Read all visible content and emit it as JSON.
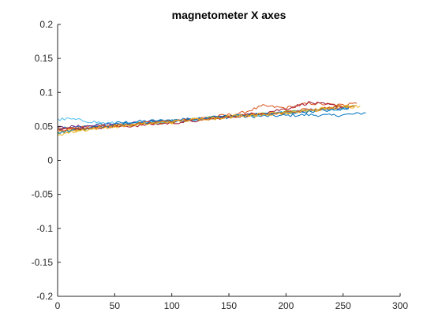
{
  "chart_data": {
    "type": "line",
    "title": "magnetometer X axes",
    "xlabel": "",
    "ylabel": "",
    "xlim": [
      0,
      300
    ],
    "ylim": [
      -0.2,
      0.2
    ],
    "xticks": [
      0,
      50,
      100,
      150,
      200,
      250,
      300
    ],
    "yticks": [
      -0.2,
      -0.15,
      -0.1,
      -0.05,
      0,
      0.05,
      0.1,
      0.15,
      0.2
    ],
    "xtick_labels": [
      "0",
      "50",
      "100",
      "150",
      "200",
      "250",
      "300"
    ],
    "ytick_labels": [
      "-0.2",
      "-0.15",
      "-0.1",
      "-0.05",
      "0",
      "0.05",
      "0.1",
      "0.15",
      "0.2"
    ],
    "grid": false,
    "legend": "none",
    "series": [
      {
        "color": "#0072BD",
        "x": [
          0,
          20,
          40,
          60,
          80,
          100,
          120,
          140,
          160,
          180,
          200,
          220,
          240,
          260,
          270
        ],
        "y": [
          0.046,
          0.049,
          0.053,
          0.056,
          0.058,
          0.059,
          0.061,
          0.063,
          0.064,
          0.065,
          0.066,
          0.067,
          0.066,
          0.068,
          0.07
        ]
      },
      {
        "color": "#D95319",
        "x": [
          0,
          20,
          40,
          60,
          80,
          100,
          120,
          140,
          160,
          180,
          200,
          220,
          240,
          260
        ],
        "y": [
          0.047,
          0.048,
          0.051,
          0.052,
          0.054,
          0.057,
          0.061,
          0.065,
          0.069,
          0.08,
          0.077,
          0.084,
          0.082,
          0.08
        ]
      },
      {
        "color": "#EDB120",
        "x": [
          0,
          20,
          40,
          60,
          80,
          100,
          120,
          140,
          160,
          180,
          200,
          220,
          240,
          265
        ],
        "y": [
          0.043,
          0.046,
          0.049,
          0.052,
          0.054,
          0.056,
          0.059,
          0.062,
          0.065,
          0.067,
          0.07,
          0.073,
          0.076,
          0.08
        ]
      },
      {
        "color": "#7E2F8E",
        "x": [
          0,
          20,
          40,
          60,
          80,
          100,
          120,
          140,
          160,
          180,
          200,
          220,
          240,
          255
        ],
        "y": [
          0.048,
          0.05,
          0.052,
          0.054,
          0.056,
          0.058,
          0.06,
          0.063,
          0.066,
          0.068,
          0.071,
          0.074,
          0.076,
          0.078
        ]
      },
      {
        "color": "#77AC30",
        "x": [
          0,
          20,
          40,
          60,
          80,
          100,
          120,
          140,
          160,
          180,
          200,
          220,
          240,
          260
        ],
        "y": [
          0.04,
          0.045,
          0.049,
          0.052,
          0.055,
          0.057,
          0.06,
          0.063,
          0.066,
          0.068,
          0.071,
          0.074,
          0.077,
          0.081
        ]
      },
      {
        "color": "#4DBEEE",
        "x": [
          0,
          10,
          20,
          30,
          40,
          60,
          80,
          100,
          120,
          140,
          160,
          180,
          200,
          220,
          240,
          255
        ],
        "y": [
          0.06,
          0.061,
          0.059,
          0.057,
          0.055,
          0.054,
          0.055,
          0.057,
          0.06,
          0.063,
          0.066,
          0.068,
          0.071,
          0.073,
          0.075,
          0.077
        ]
      },
      {
        "color": "#A2142F",
        "x": [
          0,
          20,
          40,
          60,
          80,
          100,
          120,
          140,
          160,
          180,
          200,
          220,
          235,
          250
        ],
        "y": [
          0.047,
          0.047,
          0.049,
          0.05,
          0.053,
          0.055,
          0.058,
          0.062,
          0.066,
          0.07,
          0.076,
          0.085,
          0.082,
          0.079
        ]
      },
      {
        "color": "#0072BD",
        "x": [
          0,
          20,
          40,
          60,
          80,
          100,
          120,
          140,
          160,
          180,
          200,
          220,
          240,
          255
        ],
        "y": [
          0.041,
          0.046,
          0.05,
          0.054,
          0.057,
          0.059,
          0.061,
          0.064,
          0.066,
          0.068,
          0.07,
          0.072,
          0.074,
          0.076
        ]
      },
      {
        "color": "#D95319",
        "x": [
          0,
          20,
          40,
          60,
          80,
          100,
          120,
          140,
          160,
          180,
          200,
          220,
          240,
          262
        ],
        "y": [
          0.045,
          0.047,
          0.05,
          0.053,
          0.055,
          0.058,
          0.06,
          0.062,
          0.065,
          0.068,
          0.071,
          0.075,
          0.078,
          0.084
        ]
      },
      {
        "color": "#EDB120",
        "x": [
          0,
          20,
          40,
          60,
          80,
          100,
          120,
          140,
          160,
          180,
          200,
          220,
          240,
          258
        ],
        "y": [
          0.038,
          0.044,
          0.048,
          0.051,
          0.054,
          0.057,
          0.06,
          0.063,
          0.066,
          0.068,
          0.071,
          0.074,
          0.077,
          0.08
        ]
      }
    ]
  }
}
